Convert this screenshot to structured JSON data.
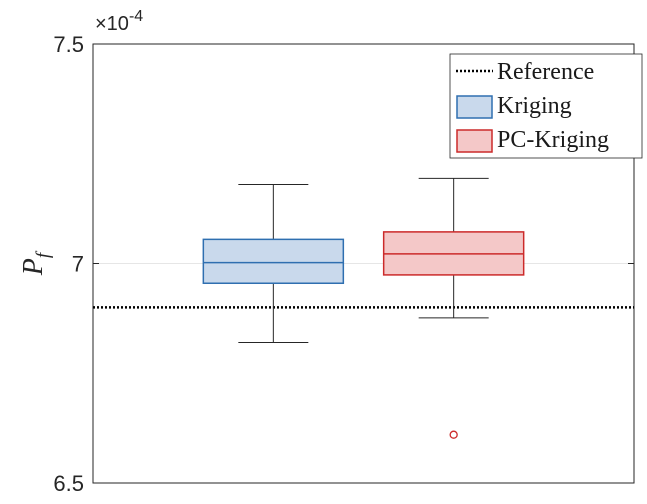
{
  "chart_data": {
    "type": "box",
    "ylabel": "P",
    "ylabel_subscript": "f",
    "exponent": {
      "base": "×10",
      "power": "-4"
    },
    "ylim": [
      6.5,
      7.5
    ],
    "yticks": [
      6.5,
      7,
      7.5
    ],
    "ytick_labels": [
      "6.5",
      "7",
      "7.5"
    ],
    "reference": {
      "name": "Reference",
      "value": 6.9
    },
    "grid": true,
    "legend_position": "top-right",
    "series": [
      {
        "name": "Kriging",
        "color": "#2f6fb0",
        "fill": "#c9d9ec",
        "whisker_low": 6.82,
        "q1": 6.955,
        "median": 7.002,
        "q3": 7.055,
        "whisker_high": 7.18,
        "outliers": []
      },
      {
        "name": "PC-Kriging",
        "color": "#cc2a2a",
        "fill": "#f4c8c8",
        "whisker_low": 6.876,
        "q1": 6.974,
        "median": 7.022,
        "q3": 7.072,
        "whisker_high": 7.194,
        "outliers": [
          6.61
        ]
      }
    ]
  }
}
